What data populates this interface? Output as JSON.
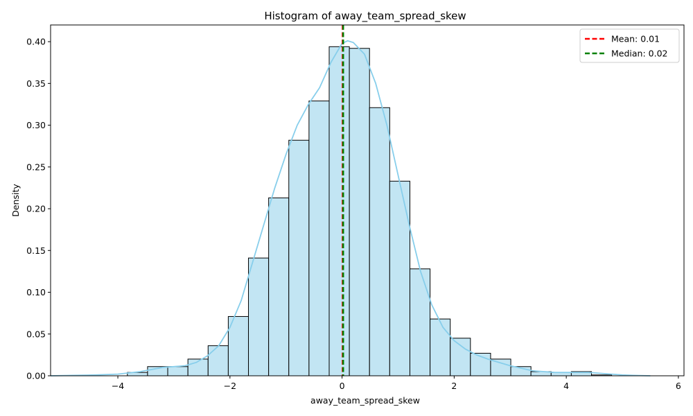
{
  "chart_data": {
    "type": "bar",
    "title": "Histogram of away_team_spread_skew",
    "xlabel": "away_team_spread_skew",
    "ylabel": "Density",
    "xlim": [
      -5.2,
      6.1
    ],
    "ylim": [
      0,
      0.42
    ],
    "xticks": [
      -4,
      -2,
      0,
      2,
      4,
      6
    ],
    "xtick_labels": [
      "−4",
      "−2",
      "0",
      "2",
      "4",
      "6"
    ],
    "yticks": [
      0.0,
      0.05,
      0.1,
      0.15,
      0.2,
      0.25,
      0.3,
      0.35,
      0.4
    ],
    "ytick_labels": [
      "0.00",
      "0.05",
      "0.10",
      "0.15",
      "0.20",
      "0.25",
      "0.30",
      "0.35",
      "0.40"
    ],
    "grid": false,
    "legend_position": "top-right",
    "bins": [
      {
        "x0": -3.83,
        "x1": -3.47,
        "value": 0.004
      },
      {
        "x0": -3.47,
        "x1": -3.11,
        "value": 0.011
      },
      {
        "x0": -3.11,
        "x1": -2.75,
        "value": 0.011
      },
      {
        "x0": -2.75,
        "x1": -2.39,
        "value": 0.02
      },
      {
        "x0": -2.39,
        "x1": -2.03,
        "value": 0.036
      },
      {
        "x0": -2.03,
        "x1": -1.67,
        "value": 0.071
      },
      {
        "x0": -1.67,
        "x1": -1.31,
        "value": 0.141
      },
      {
        "x0": -1.31,
        "x1": -0.95,
        "value": 0.213
      },
      {
        "x0": -0.95,
        "x1": -0.59,
        "value": 0.282
      },
      {
        "x0": -0.59,
        "x1": -0.23,
        "value": 0.329
      },
      {
        "x0": -0.23,
        "x1": 0.13,
        "value": 0.394
      },
      {
        "x0": 0.13,
        "x1": 0.49,
        "value": 0.392
      },
      {
        "x0": 0.49,
        "x1": 0.85,
        "value": 0.321
      },
      {
        "x0": 0.85,
        "x1": 1.21,
        "value": 0.233
      },
      {
        "x0": 1.21,
        "x1": 1.57,
        "value": 0.128
      },
      {
        "x0": 1.57,
        "x1": 1.93,
        "value": 0.068
      },
      {
        "x0": 1.93,
        "x1": 2.29,
        "value": 0.045
      },
      {
        "x0": 2.29,
        "x1": 2.65,
        "value": 0.027
      },
      {
        "x0": 2.65,
        "x1": 3.01,
        "value": 0.02
      },
      {
        "x0": 3.01,
        "x1": 3.37,
        "value": 0.011
      },
      {
        "x0": 3.37,
        "x1": 3.73,
        "value": 0.005
      },
      {
        "x0": 3.73,
        "x1": 4.09,
        "value": 0.004
      },
      {
        "x0": 4.09,
        "x1": 4.45,
        "value": 0.005
      },
      {
        "x0": 4.45,
        "x1": 4.81,
        "value": 0.001
      }
    ],
    "kde": {
      "x": [
        -5.2,
        -4.8,
        -4.4,
        -4.0,
        -3.6,
        -3.2,
        -3.0,
        -2.8,
        -2.6,
        -2.4,
        -2.2,
        -2.0,
        -1.8,
        -1.6,
        -1.4,
        -1.2,
        -1.0,
        -0.8,
        -0.6,
        -0.4,
        -0.2,
        0.0,
        0.1,
        0.2,
        0.4,
        0.6,
        0.8,
        1.0,
        1.2,
        1.4,
        1.6,
        1.8,
        2.0,
        2.2,
        2.4,
        2.6,
        2.8,
        3.0,
        3.2,
        3.4,
        3.6,
        3.8,
        4.0,
        4.2,
        4.4,
        4.6,
        4.8,
        5.0,
        5.2,
        5.5
      ],
      "y": [
        0.0,
        0.0005,
        0.001,
        0.002,
        0.005,
        0.01,
        0.011,
        0.012,
        0.016,
        0.024,
        0.036,
        0.058,
        0.09,
        0.135,
        0.18,
        0.225,
        0.265,
        0.3,
        0.325,
        0.345,
        0.375,
        0.398,
        0.401,
        0.399,
        0.385,
        0.35,
        0.3,
        0.24,
        0.18,
        0.125,
        0.085,
        0.058,
        0.042,
        0.032,
        0.025,
        0.02,
        0.016,
        0.012,
        0.009,
        0.006,
        0.005,
        0.004,
        0.004,
        0.004,
        0.004,
        0.003,
        0.002,
        0.001,
        0.0005,
        0.0
      ],
      "color": "#87CEEB"
    },
    "lines": [
      {
        "name": "Mean: 0.01",
        "x": 0.01,
        "color": "#ff0000",
        "style": "dashed"
      },
      {
        "name": "Median: 0.02",
        "x": 0.02,
        "color": "#008000",
        "style": "dashed"
      }
    ],
    "bar_fill": "#c2e5f3",
    "bar_edge": "#000000"
  }
}
